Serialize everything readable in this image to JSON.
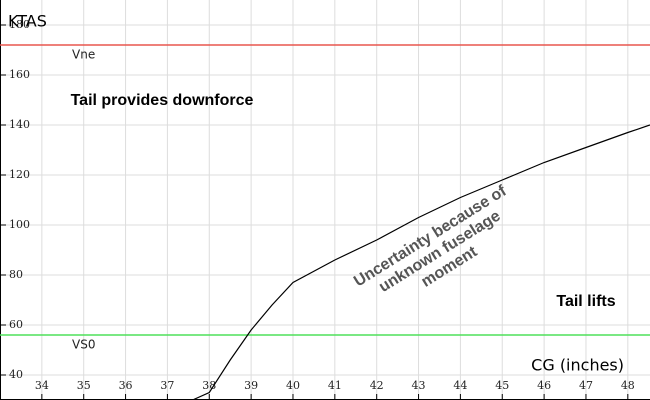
{
  "chart_data": {
    "type": "line",
    "y_label": "KTAS",
    "x_label": "CG (inches)",
    "xlim": [
      33,
      48.53
    ],
    "ylim": [
      30,
      190
    ],
    "xticks": [
      34,
      35,
      36,
      37,
      38,
      39,
      40,
      41,
      42,
      43,
      44,
      45,
      46,
      47,
      48
    ],
    "yticks": [
      40,
      60,
      80,
      100,
      120,
      140,
      160,
      180
    ],
    "grid": true,
    "series": [
      {
        "color": "#000000",
        "x": [
          37.6,
          38,
          38.5,
          39,
          39.5,
          40,
          41,
          42,
          43,
          44,
          45,
          46,
          47,
          48,
          48.53
        ],
        "values": [
          30,
          33,
          46,
          58,
          68,
          77,
          86,
          94,
          103,
          111,
          118,
          125,
          131,
          137,
          140
        ]
      }
    ],
    "hlines": [
      {
        "label": "Vne",
        "value": 172,
        "color": "#e8564f"
      },
      {
        "label": "VS0",
        "value": 56,
        "color": "#4fe05a"
      }
    ],
    "annotations": [
      "Tail provides downforce",
      "Tail lifts",
      "Uncertainty because of",
      "unknown fuselage",
      "moment"
    ]
  }
}
